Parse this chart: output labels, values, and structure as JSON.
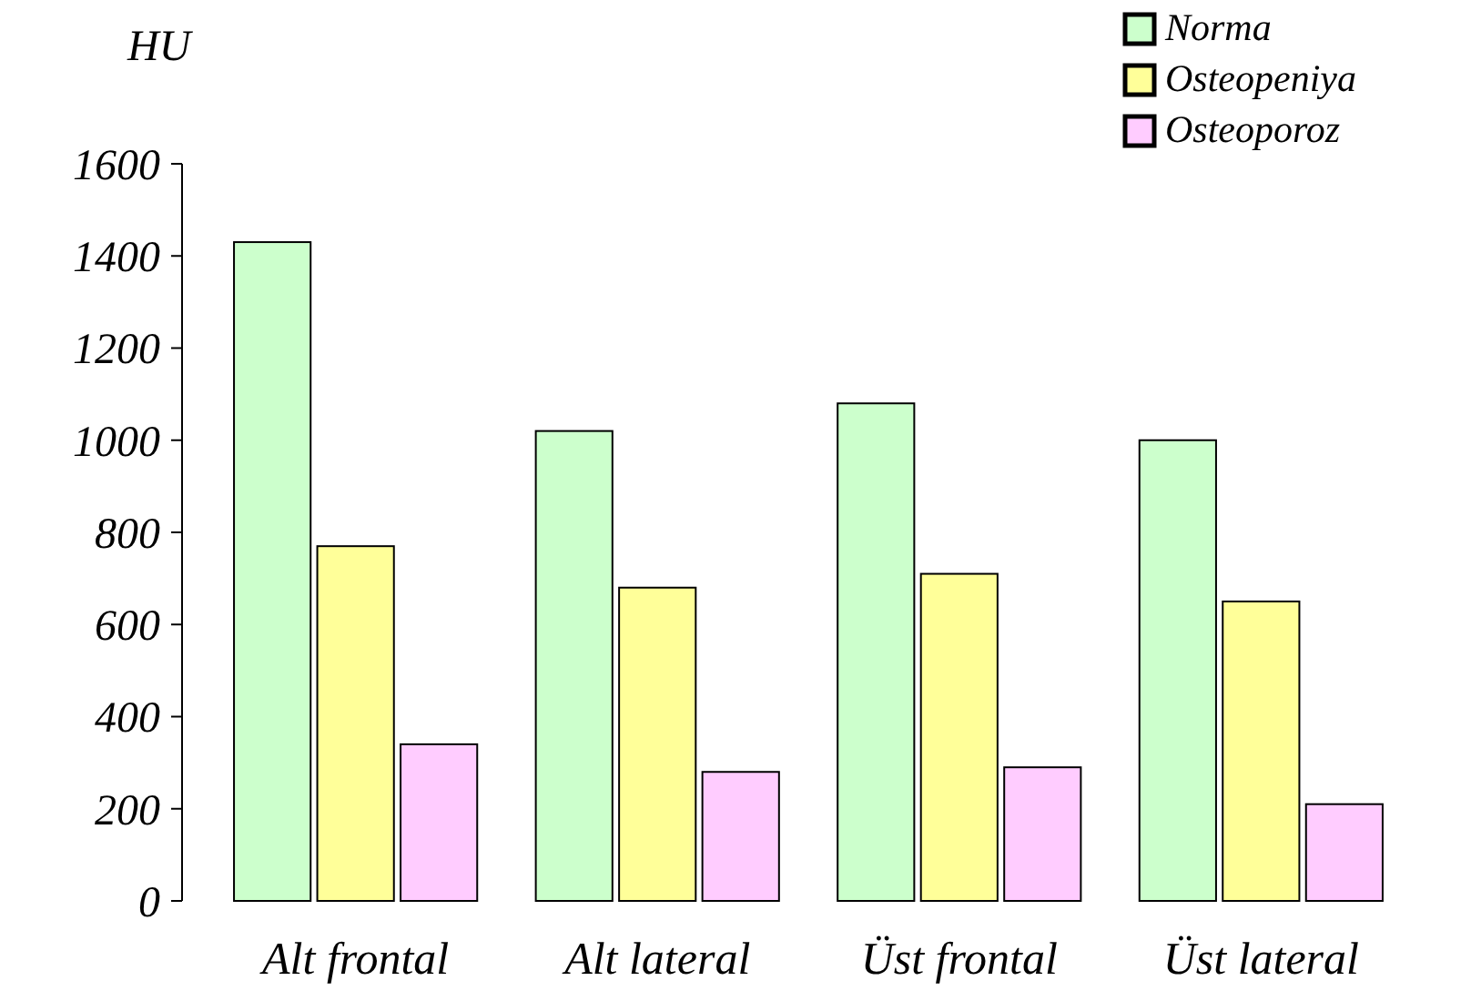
{
  "chart_data": {
    "type": "bar",
    "ylabel": "HU",
    "categories": [
      "Alt frontal",
      "Alt lateral",
      "Üst frontal",
      "Üst lateral"
    ],
    "series": [
      {
        "name": "Norma",
        "color": "#ccffcc",
        "values": [
          1430,
          1020,
          1080,
          1000
        ]
      },
      {
        "name": "Osteopeniya",
        "color": "#ffff99",
        "values": [
          770,
          680,
          710,
          650
        ]
      },
      {
        "name": "Osteoporoz",
        "color": "#ffccff",
        "values": [
          340,
          280,
          290,
          210
        ]
      }
    ],
    "ylim": [
      0,
      1600
    ],
    "yticks": [
      0,
      200,
      400,
      600,
      800,
      1000,
      1200,
      1400,
      1600
    ],
    "grid": false,
    "legend": "top right"
  }
}
